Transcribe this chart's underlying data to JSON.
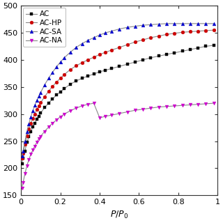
{
  "xlabel": "$P/P_0$",
  "xlim": [
    0,
    1.0
  ],
  "ylim": [
    150,
    500
  ],
  "yticks": [
    150,
    200,
    250,
    300,
    350,
    400,
    450,
    500
  ],
  "xticks": [
    0.0,
    0.2,
    0.4,
    0.6,
    0.8,
    1.0
  ],
  "xtick_labels": [
    "0",
    "0.2",
    "0.4",
    "0.6",
    "0.8",
    "1"
  ],
  "series": [
    {
      "label": "AC",
      "line_color": "#888888",
      "marker": "s",
      "marker_color": "#000000",
      "x": [
        0.005,
        0.01,
        0.02,
        0.03,
        0.04,
        0.05,
        0.06,
        0.07,
        0.08,
        0.09,
        0.1,
        0.12,
        0.14,
        0.16,
        0.18,
        0.2,
        0.22,
        0.25,
        0.28,
        0.31,
        0.34,
        0.37,
        0.4,
        0.43,
        0.46,
        0.5,
        0.54,
        0.58,
        0.62,
        0.66,
        0.7,
        0.74,
        0.78,
        0.82,
        0.86,
        0.9,
        0.94,
        0.98
      ],
      "y": [
        208,
        218,
        232,
        248,
        258,
        268,
        276,
        283,
        290,
        296,
        302,
        312,
        320,
        328,
        335,
        341,
        347,
        355,
        361,
        366,
        370,
        374,
        378,
        381,
        384,
        388,
        392,
        396,
        400,
        404,
        407,
        410,
        413,
        416,
        419,
        422,
        425,
        427
      ]
    },
    {
      "label": "AC-HP",
      "line_color": "#888888",
      "marker": "o",
      "marker_color": "#cc0000",
      "x": [
        0.005,
        0.01,
        0.02,
        0.03,
        0.04,
        0.05,
        0.06,
        0.07,
        0.08,
        0.09,
        0.1,
        0.12,
        0.14,
        0.16,
        0.18,
        0.2,
        0.22,
        0.25,
        0.28,
        0.31,
        0.34,
        0.37,
        0.4,
        0.43,
        0.46,
        0.5,
        0.54,
        0.58,
        0.62,
        0.66,
        0.7,
        0.74,
        0.78,
        0.82,
        0.86,
        0.9,
        0.94,
        0.98
      ],
      "y": [
        218,
        228,
        244,
        260,
        272,
        283,
        292,
        300,
        308,
        315,
        321,
        332,
        342,
        351,
        359,
        366,
        373,
        382,
        389,
        395,
        400,
        405,
        410,
        414,
        418,
        423,
        428,
        433,
        437,
        441,
        444,
        447,
        449,
        451,
        452,
        453,
        454,
        455
      ]
    },
    {
      "label": "AC-SA",
      "line_color": "#888888",
      "marker": "^",
      "marker_color": "#0000cc",
      "x": [
        0.005,
        0.01,
        0.02,
        0.03,
        0.04,
        0.05,
        0.06,
        0.07,
        0.08,
        0.09,
        0.1,
        0.12,
        0.14,
        0.16,
        0.18,
        0.2,
        0.22,
        0.25,
        0.28,
        0.31,
        0.34,
        0.37,
        0.4,
        0.43,
        0.46,
        0.5,
        0.54,
        0.58,
        0.62,
        0.66,
        0.7,
        0.74,
        0.78,
        0.82,
        0.86,
        0.9,
        0.94,
        0.98
      ],
      "y": [
        222,
        232,
        250,
        268,
        282,
        295,
        306,
        316,
        325,
        333,
        340,
        354,
        366,
        377,
        387,
        396,
        404,
        414,
        423,
        430,
        436,
        441,
        446,
        450,
        453,
        457,
        460,
        462,
        464,
        465,
        466,
        467,
        467,
        467,
        467,
        467,
        467,
        467
      ]
    },
    {
      "label": "AC-NA",
      "line_color": "#888888",
      "marker": "v",
      "marker_color": "#cc00cc",
      "x": [
        0.005,
        0.01,
        0.02,
        0.03,
        0.04,
        0.05,
        0.06,
        0.07,
        0.08,
        0.09,
        0.1,
        0.12,
        0.14,
        0.16,
        0.18,
        0.2,
        0.22,
        0.25,
        0.28,
        0.31,
        0.34,
        0.37,
        0.4,
        0.43,
        0.46,
        0.5,
        0.54,
        0.58,
        0.62,
        0.66,
        0.7,
        0.74,
        0.78,
        0.82,
        0.86,
        0.9,
        0.94,
        0.98
      ],
      "y": [
        163,
        173,
        190,
        205,
        216,
        226,
        234,
        241,
        248,
        254,
        259,
        268,
        276,
        283,
        289,
        295,
        300,
        306,
        311,
        315,
        318,
        320,
        293,
        296,
        298,
        301,
        304,
        307,
        309,
        311,
        313,
        314,
        315,
        316,
        317,
        318,
        319,
        320
      ]
    }
  ],
  "legend_loc": "upper left",
  "line_width": 0.8,
  "marker_size": 3.5,
  "font_size": 9,
  "bg_color": "#ffffff"
}
